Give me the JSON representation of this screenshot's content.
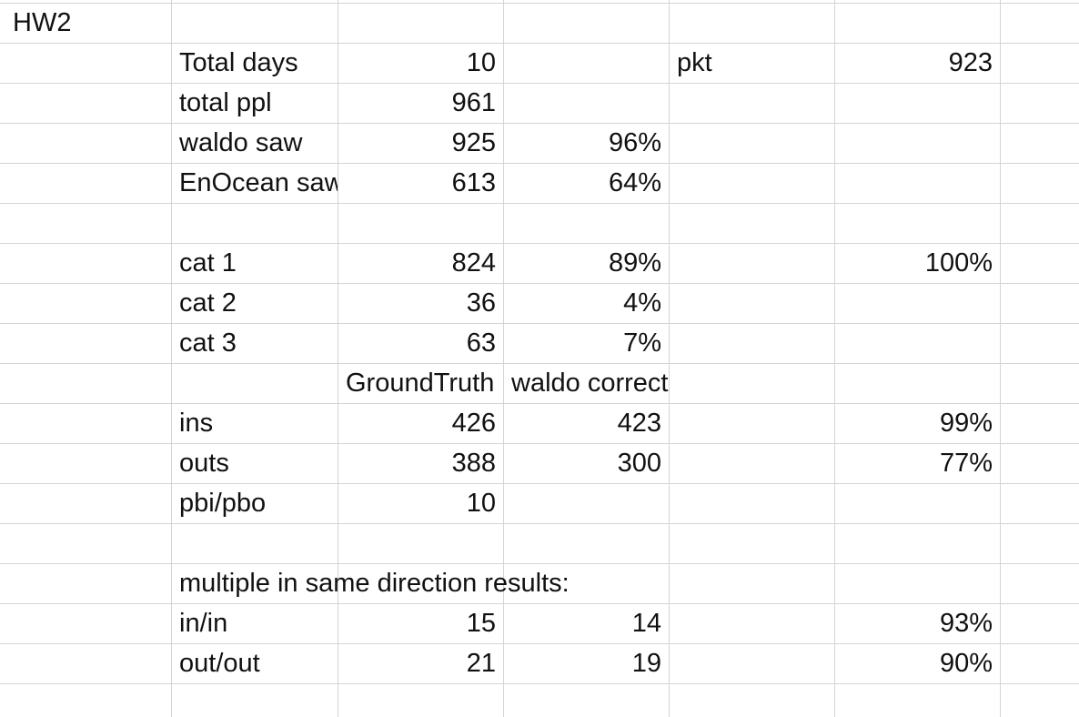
{
  "sheet": {
    "a1": "HW2",
    "rows": [
      {
        "label": "Total days",
        "c": "10",
        "d": "",
        "e": "pkt",
        "f": "923"
      },
      {
        "label": "total ppl",
        "c": "961",
        "d": "",
        "e": "",
        "f": ""
      },
      {
        "label": "waldo saw",
        "c": "925",
        "d": "96%",
        "e": "",
        "f": ""
      },
      {
        "label": "EnOcean saw",
        "c": "613",
        "d": "64%",
        "e": "",
        "f": ""
      },
      {
        "label": "",
        "c": "",
        "d": "",
        "e": "",
        "f": ""
      },
      {
        "label": "cat 1",
        "c": "824",
        "d": "89%",
        "e": "",
        "f": "100%"
      },
      {
        "label": "cat 2",
        "c": "36",
        "d": "4%",
        "e": "",
        "f": ""
      },
      {
        "label": "cat 3",
        "c": "63",
        "d": "7%",
        "e": "",
        "f": ""
      },
      {
        "label": "",
        "c": "GroundTruth",
        "d": "waldo correct",
        "e": "",
        "f": ""
      },
      {
        "label": "ins",
        "c": "426",
        "d": "423",
        "e": "",
        "f": "99%"
      },
      {
        "label": "outs",
        "c": "388",
        "d": "300",
        "e": "",
        "f": "77%"
      },
      {
        "label": "pbi/pbo",
        "c": "10",
        "d": "",
        "e": "",
        "f": ""
      },
      {
        "label": "",
        "c": "",
        "d": "",
        "e": "",
        "f": ""
      },
      {
        "label": "multiple in same direction results:",
        "c": "",
        "d": "",
        "e": "",
        "f": ""
      },
      {
        "label": "in/in",
        "c": "15",
        "d": "14",
        "e": "",
        "f": "93%"
      },
      {
        "label": "out/out",
        "c": "21",
        "d": "19",
        "e": "",
        "f": "90%"
      }
    ]
  }
}
